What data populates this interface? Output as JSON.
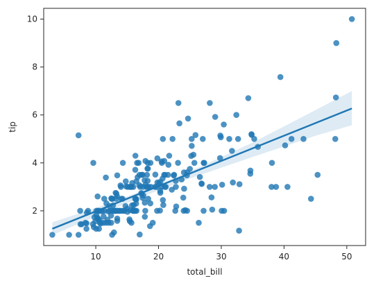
{
  "chart_data": {
    "type": "scatter",
    "title": "",
    "xlabel": "total_bill",
    "ylabel": "tip",
    "xlim": [
      1.7,
      53.0
    ],
    "ylim": [
      0.55,
      10.45
    ],
    "x_ticks": [
      10,
      20,
      30,
      40,
      50
    ],
    "y_ticks": [
      2,
      4,
      6,
      8,
      10
    ],
    "grid": false,
    "legend": "none",
    "point_color": "#1f77b4",
    "line_color": "#1f77b4",
    "band_color": "#1f77b4",
    "points": [
      [
        16.99,
        1.01
      ],
      [
        10.34,
        1.66
      ],
      [
        21.01,
        3.5
      ],
      [
        23.68,
        3.31
      ],
      [
        24.59,
        3.61
      ],
      [
        25.29,
        4.71
      ],
      [
        8.77,
        2.0
      ],
      [
        26.88,
        3.12
      ],
      [
        15.04,
        1.96
      ],
      [
        14.78,
        3.23
      ],
      [
        10.27,
        1.71
      ],
      [
        35.26,
        5.0
      ],
      [
        15.42,
        1.57
      ],
      [
        18.43,
        3.0
      ],
      [
        14.83,
        3.02
      ],
      [
        21.58,
        3.92
      ],
      [
        10.33,
        1.67
      ],
      [
        16.29,
        3.71
      ],
      [
        16.97,
        3.5
      ],
      [
        20.65,
        3.35
      ],
      [
        17.92,
        4.08
      ],
      [
        20.29,
        2.75
      ],
      [
        15.77,
        2.23
      ],
      [
        39.42,
        7.58
      ],
      [
        19.82,
        3.18
      ],
      [
        17.81,
        2.34
      ],
      [
        13.37,
        2.0
      ],
      [
        12.69,
        2.0
      ],
      [
        21.7,
        4.3
      ],
      [
        19.65,
        3.0
      ],
      [
        9.55,
        1.45
      ],
      [
        18.35,
        2.5
      ],
      [
        15.06,
        3.0
      ],
      [
        20.69,
        2.45
      ],
      [
        17.78,
        3.27
      ],
      [
        24.06,
        3.6
      ],
      [
        16.31,
        2.0
      ],
      [
        16.93,
        3.07
      ],
      [
        18.69,
        2.31
      ],
      [
        31.27,
        5.0
      ],
      [
        16.04,
        2.24
      ],
      [
        17.46,
        2.54
      ],
      [
        13.94,
        3.06
      ],
      [
        9.68,
        1.32
      ],
      [
        30.4,
        5.6
      ],
      [
        18.29,
        3.0
      ],
      [
        22.23,
        5.0
      ],
      [
        32.4,
        6.0
      ],
      [
        28.55,
        2.05
      ],
      [
        18.04,
        3.0
      ],
      [
        12.54,
        2.5
      ],
      [
        10.29,
        2.6
      ],
      [
        34.81,
        5.2
      ],
      [
        9.94,
        1.56
      ],
      [
        25.56,
        4.34
      ],
      [
        19.49,
        3.51
      ],
      [
        38.01,
        3.0
      ],
      [
        26.41,
        1.5
      ],
      [
        11.24,
        1.76
      ],
      [
        48.27,
        6.73
      ],
      [
        20.29,
        3.21
      ],
      [
        13.81,
        2.0
      ],
      [
        11.02,
        1.98
      ],
      [
        18.29,
        3.76
      ],
      [
        17.59,
        2.64
      ],
      [
        20.08,
        3.15
      ],
      [
        16.45,
        2.47
      ],
      [
        3.07,
        1.0
      ],
      [
        20.23,
        2.01
      ],
      [
        15.01,
        2.09
      ],
      [
        12.02,
        1.97
      ],
      [
        17.07,
        3.0
      ],
      [
        26.86,
        3.14
      ],
      [
        25.28,
        5.0
      ],
      [
        14.73,
        2.2
      ],
      [
        10.51,
        1.25
      ],
      [
        17.92,
        3.08
      ],
      [
        27.2,
        4.0
      ],
      [
        22.76,
        3.0
      ],
      [
        17.29,
        2.71
      ],
      [
        19.44,
        3.0
      ],
      [
        16.66,
        3.4
      ],
      [
        10.07,
        1.83
      ],
      [
        32.68,
        5.0
      ],
      [
        15.98,
        2.03
      ],
      [
        34.83,
        5.17
      ],
      [
        13.03,
        2.0
      ],
      [
        18.28,
        4.0
      ],
      [
        24.71,
        5.85
      ],
      [
        21.16,
        3.0
      ],
      [
        28.97,
        3.0
      ],
      [
        22.49,
        3.5
      ],
      [
        5.75,
        1.0
      ],
      [
        16.32,
        4.3
      ],
      [
        22.75,
        3.25
      ],
      [
        40.17,
        4.73
      ],
      [
        27.28,
        4.0
      ],
      [
        12.03,
        1.5
      ],
      [
        21.01,
        3.0
      ],
      [
        12.46,
        1.5
      ],
      [
        11.35,
        2.5
      ],
      [
        15.38,
        3.0
      ],
      [
        44.3,
        2.5
      ],
      [
        22.42,
        3.48
      ],
      [
        20.92,
        4.08
      ],
      [
        15.36,
        1.64
      ],
      [
        20.49,
        4.06
      ],
      [
        25.21,
        4.29
      ],
      [
        18.24,
        3.76
      ],
      [
        14.31,
        4.0
      ],
      [
        14.0,
        3.0
      ],
      [
        7.25,
        1.0
      ],
      [
        38.07,
        4.0
      ],
      [
        23.95,
        2.55
      ],
      [
        25.71,
        4.0
      ],
      [
        17.31,
        3.5
      ],
      [
        29.93,
        5.07
      ],
      [
        10.65,
        1.5
      ],
      [
        12.43,
        1.8
      ],
      [
        24.08,
        2.92
      ],
      [
        11.69,
        2.31
      ],
      [
        13.42,
        1.68
      ],
      [
        14.26,
        2.5
      ],
      [
        15.95,
        2.0
      ],
      [
        12.48,
        2.52
      ],
      [
        29.8,
        4.2
      ],
      [
        8.52,
        1.48
      ],
      [
        14.52,
        2.0
      ],
      [
        11.38,
        2.0
      ],
      [
        22.82,
        2.18
      ],
      [
        19.08,
        1.5
      ],
      [
        20.27,
        2.83
      ],
      [
        11.17,
        1.5
      ],
      [
        12.26,
        2.0
      ],
      [
        18.26,
        3.25
      ],
      [
        8.51,
        1.25
      ],
      [
        10.33,
        2.0
      ],
      [
        14.15,
        2.0
      ],
      [
        16.0,
        2.0
      ],
      [
        13.16,
        2.75
      ],
      [
        17.47,
        3.5
      ],
      [
        34.3,
        6.7
      ],
      [
        41.19,
        5.0
      ],
      [
        27.05,
        5.0
      ],
      [
        16.43,
        2.3
      ],
      [
        8.35,
        1.5
      ],
      [
        18.64,
        1.36
      ],
      [
        11.87,
        1.63
      ],
      [
        9.78,
        1.73
      ],
      [
        7.51,
        2.0
      ],
      [
        14.07,
        2.5
      ],
      [
        13.13,
        2.0
      ],
      [
        17.26,
        2.74
      ],
      [
        24.55,
        2.0
      ],
      [
        19.77,
        2.0
      ],
      [
        29.85,
        5.14
      ],
      [
        48.17,
        5.0
      ],
      [
        25.0,
        3.75
      ],
      [
        13.39,
        2.61
      ],
      [
        16.49,
        2.0
      ],
      [
        21.5,
        3.5
      ],
      [
        12.66,
        2.5
      ],
      [
        16.21,
        2.0
      ],
      [
        13.81,
        2.0
      ],
      [
        17.51,
        3.0
      ],
      [
        24.52,
        3.48
      ],
      [
        20.76,
        2.24
      ],
      [
        31.71,
        4.5
      ],
      [
        10.59,
        1.61
      ],
      [
        10.63,
        2.0
      ],
      [
        50.81,
        10.0
      ],
      [
        15.81,
        3.16
      ],
      [
        7.25,
        5.15
      ],
      [
        31.85,
        3.18
      ],
      [
        16.82,
        4.0
      ],
      [
        32.9,
        3.11
      ],
      [
        17.89,
        2.0
      ],
      [
        14.48,
        2.0
      ],
      [
        9.6,
        4.0
      ],
      [
        34.63,
        3.55
      ],
      [
        34.65,
        3.68
      ],
      [
        23.33,
        5.65
      ],
      [
        45.35,
        3.5
      ],
      [
        23.17,
        6.5
      ],
      [
        40.55,
        3.0
      ],
      [
        20.69,
        5.0
      ],
      [
        20.9,
        3.5
      ],
      [
        30.46,
        2.0
      ],
      [
        18.15,
        3.5
      ],
      [
        23.1,
        4.0
      ],
      [
        15.69,
        1.5
      ],
      [
        19.81,
        4.19
      ],
      [
        28.44,
        2.56
      ],
      [
        15.48,
        2.02
      ],
      [
        16.58,
        4.0
      ],
      [
        7.56,
        1.44
      ],
      [
        10.34,
        2.0
      ],
      [
        43.11,
        5.0
      ],
      [
        13.0,
        2.0
      ],
      [
        13.51,
        2.0
      ],
      [
        18.71,
        4.0
      ],
      [
        12.74,
        2.01
      ],
      [
        13.0,
        2.0
      ],
      [
        16.4,
        2.5
      ],
      [
        20.53,
        4.0
      ],
      [
        16.47,
        3.23
      ],
      [
        26.59,
        3.41
      ],
      [
        38.73,
        3.0
      ],
      [
        24.27,
        2.03
      ],
      [
        12.76,
        2.23
      ],
      [
        30.06,
        2.0
      ],
      [
        25.89,
        5.16
      ],
      [
        48.33,
        9.0
      ],
      [
        13.27,
        2.5
      ],
      [
        28.17,
        6.5
      ],
      [
        12.9,
        1.1
      ],
      [
        28.15,
        3.0
      ],
      [
        11.59,
        1.5
      ],
      [
        7.74,
        1.44
      ],
      [
        30.14,
        3.09
      ],
      [
        12.16,
        2.2
      ],
      [
        13.42,
        3.48
      ],
      [
        8.58,
        1.92
      ],
      [
        15.98,
        3.0
      ],
      [
        13.42,
        1.58
      ],
      [
        16.27,
        2.5
      ],
      [
        10.09,
        2.0
      ],
      [
        20.45,
        3.0
      ],
      [
        13.28,
        2.72
      ],
      [
        22.12,
        2.88
      ],
      [
        24.01,
        2.0
      ],
      [
        15.69,
        3.0
      ],
      [
        11.61,
        3.39
      ],
      [
        10.77,
        1.47
      ],
      [
        15.53,
        3.0
      ],
      [
        10.07,
        1.25
      ],
      [
        12.6,
        1.0
      ],
      [
        32.83,
        1.17
      ],
      [
        35.83,
        4.67
      ],
      [
        29.03,
        5.92
      ],
      [
        27.18,
        2.0
      ],
      [
        22.67,
        2.0
      ],
      [
        17.82,
        1.75
      ],
      [
        18.78,
        3.0
      ]
    ],
    "regression": {
      "x": [
        3.07,
        50.81
      ],
      "y": [
        1.25,
        6.27
      ]
    },
    "confidence_band": {
      "x": [
        3.07,
        10,
        15,
        20,
        25,
        30,
        35,
        40,
        45,
        50.81
      ],
      "upper": [
        1.52,
        2.12,
        2.6,
        3.11,
        3.64,
        4.25,
        4.85,
        5.52,
        6.2,
        7.0
      ],
      "lower": [
        0.99,
        1.76,
        2.32,
        2.86,
        3.35,
        3.8,
        4.25,
        4.68,
        5.13,
        5.57
      ]
    }
  }
}
